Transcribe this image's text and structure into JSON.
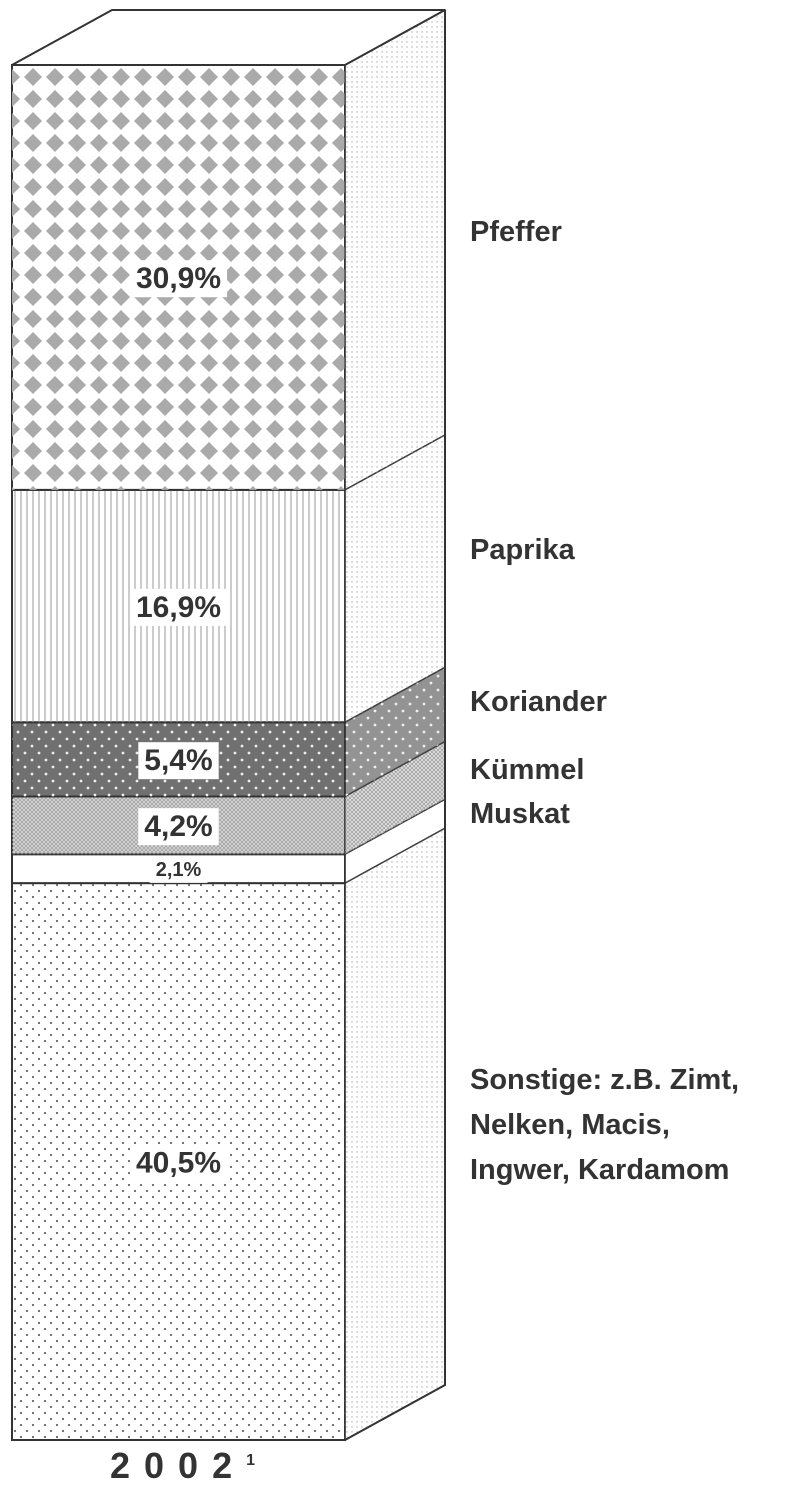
{
  "chart_data": {
    "type": "stacked_bar_3d",
    "categories": [
      "2002"
    ],
    "category_notes": [
      "1"
    ],
    "ylim": [
      0,
      100
    ],
    "series": [
      {
        "name": "Sonstige: z.B. Zimt,\nNelken, Macis,\nIngwer, Kardamom",
        "values": [
          40.5
        ],
        "value_labels": [
          "40,5%"
        ],
        "color": "#ffffff",
        "pattern": "dots"
      },
      {
        "name": "Muskat",
        "values": [
          2.1
        ],
        "value_labels": [
          "2,1%"
        ],
        "color": "#ffffff",
        "pattern": "none"
      },
      {
        "name": "Kümmel",
        "values": [
          4.2
        ],
        "value_labels": [
          "4,2%"
        ],
        "color": "#d8d8d8",
        "pattern": "hatch"
      },
      {
        "name": "Koriander",
        "values": [
          5.4
        ],
        "value_labels": [
          "5,4%"
        ],
        "color": "#707070",
        "pattern": "whitedots"
      },
      {
        "name": "Paprika",
        "values": [
          16.9
        ],
        "value_labels": [
          "16,9%"
        ],
        "color": "#ffffff",
        "pattern": "vlines"
      },
      {
        "name": "Pfeffer",
        "values": [
          30.9
        ],
        "value_labels": [
          "30,9%"
        ],
        "color": "#ffffff",
        "pattern": "diamonds"
      }
    ]
  }
}
